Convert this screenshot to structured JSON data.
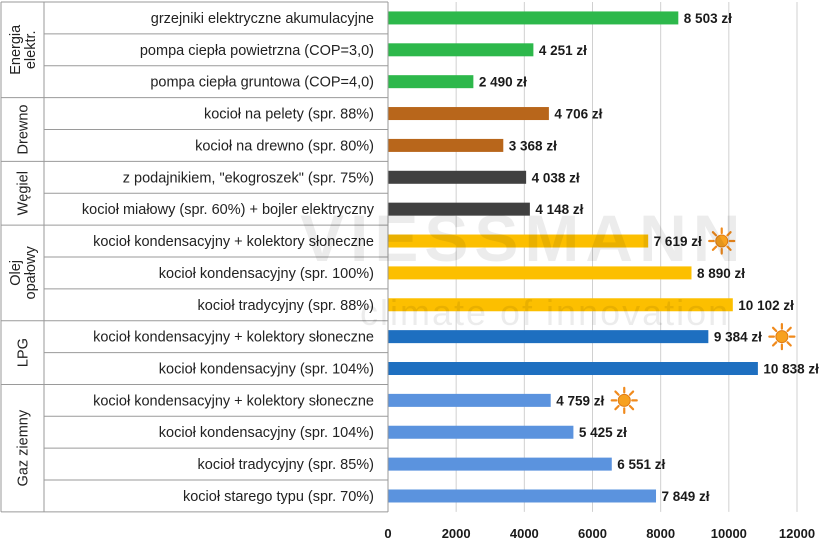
{
  "watermark": {
    "brand": "VIESSMANN",
    "tagline": "climate of innovation"
  },
  "chart_data": {
    "type": "bar",
    "orientation": "horizontal",
    "title": "",
    "xlabel": "",
    "ylabel": "",
    "xlim": [
      0,
      12000
    ],
    "x_ticks": [
      0,
      2000,
      4000,
      6000,
      8000,
      10000,
      12000
    ],
    "grid": true,
    "value_suffix": " zł",
    "groups": [
      {
        "label": "Energia elektr.",
        "color": "#2db84b",
        "items": [
          {
            "label": "grzejniki elektryczne akumulacyjne",
            "value": 8503,
            "value_label": "8 503 zł"
          },
          {
            "label": "pompa ciepła powietrzna (COP=3,0)",
            "value": 4251,
            "value_label": "4 251 zł"
          },
          {
            "label": "pompa ciepła gruntowa (COP=4,0)",
            "value": 2490,
            "value_label": "2 490 zł"
          }
        ]
      },
      {
        "label": "Drewno",
        "color": "#b8661b",
        "items": [
          {
            "label": "kocioł na pelety (spr. 88%)",
            "value": 4706,
            "value_label": "4 706 zł"
          },
          {
            "label": "kocioł na drewno (spr. 80%)",
            "value": 3368,
            "value_label": "3 368 zł"
          }
        ]
      },
      {
        "label": "Węgiel",
        "color": "#404040",
        "items": [
          {
            "label": "z podajnikiem, \"ekogroszek\" (spr. 75%)",
            "value": 4038,
            "value_label": "4 038 zł"
          },
          {
            "label": "kocioł miałowy (spr. 60%) + bojler elektryczny",
            "value": 4148,
            "value_label": "4 148 zł"
          }
        ]
      },
      {
        "label": "Olej opałowy",
        "color": "#fcbf00",
        "items": [
          {
            "label": "kocioł kondensacyjny + kolektory słoneczne",
            "value": 7619,
            "value_label": "7 619 zł",
            "sun": true
          },
          {
            "label": "kocioł kondensacyjny (spr. 100%)",
            "value": 8890,
            "value_label": "8 890 zł"
          },
          {
            "label": "kocioł tradycyjny (spr. 88%)",
            "value": 10102,
            "value_label": "10 102 zł"
          }
        ]
      },
      {
        "label": "LPG",
        "color": "#1e6fc0",
        "items": [
          {
            "label": "kocioł kondensacyjny + kolektory słoneczne",
            "value": 9384,
            "value_label": "9 384 zł",
            "sun": true
          },
          {
            "label": "kocioł kondensacyjny (spr. 104%)",
            "value": 10838,
            "value_label": "10 838 zł"
          }
        ]
      },
      {
        "label": "Gaz ziemny",
        "color": "#5b93de",
        "items": [
          {
            "label": "kocioł kondensacyjny + kolektory słoneczne",
            "value": 4759,
            "value_label": "4 759 zł",
            "sun": true
          },
          {
            "label": "kocioł kondensacyjny (spr. 104%)",
            "value": 5425,
            "value_label": "5 425 zł"
          },
          {
            "label": "kocioł tradycyjny (spr. 85%)",
            "value": 6551,
            "value_label": "6 551 zł"
          },
          {
            "label": "kocioł starego typu (spr. 70%)",
            "value": 7849,
            "value_label": "7 849 zł"
          }
        ]
      }
    ]
  }
}
